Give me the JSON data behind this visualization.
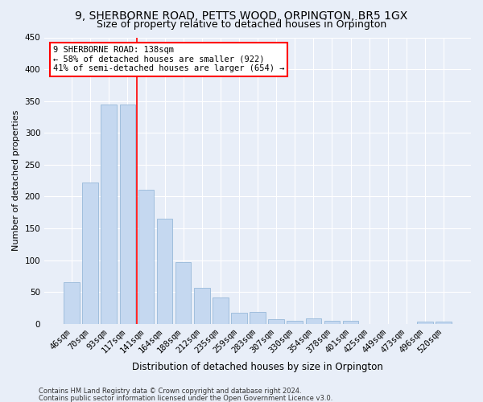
{
  "title1": "9, SHERBORNE ROAD, PETTS WOOD, ORPINGTON, BR5 1GX",
  "title2": "Size of property relative to detached houses in Orpington",
  "xlabel": "Distribution of detached houses by size in Orpington",
  "ylabel": "Number of detached properties",
  "bar_labels": [
    "46sqm",
    "70sqm",
    "93sqm",
    "117sqm",
    "141sqm",
    "164sqm",
    "188sqm",
    "212sqm",
    "235sqm",
    "259sqm",
    "283sqm",
    "307sqm",
    "330sqm",
    "354sqm",
    "378sqm",
    "401sqm",
    "425sqm",
    "449sqm",
    "473sqm",
    "496sqm",
    "520sqm"
  ],
  "bar_values": [
    65,
    222,
    345,
    345,
    210,
    165,
    97,
    57,
    41,
    17,
    18,
    7,
    5,
    8,
    5,
    5,
    0,
    0,
    0,
    3,
    4
  ],
  "bar_color": "#c5d8f0",
  "bar_edge_color": "#8ab0d4",
  "annotation_text_line1": "9 SHERBORNE ROAD: 138sqm",
  "annotation_text_line2": "← 58% of detached houses are smaller (922)",
  "annotation_text_line3": "41% of semi-detached houses are larger (654) →",
  "annotation_box_color": "white",
  "annotation_box_edge": "red",
  "vline_color": "red",
  "ylim": [
    0,
    450
  ],
  "yticks": [
    0,
    50,
    100,
    150,
    200,
    250,
    300,
    350,
    400,
    450
  ],
  "footer1": "Contains HM Land Registry data © Crown copyright and database right 2024.",
  "footer2": "Contains public sector information licensed under the Open Government Licence v3.0.",
  "bg_color": "#e8eef8",
  "plot_bg_color": "#e8eef8",
  "grid_color": "white",
  "title1_fontsize": 10,
  "title2_fontsize": 9,
  "xlabel_fontsize": 8.5,
  "ylabel_fontsize": 8,
  "tick_fontsize": 7.5,
  "annotation_fontsize": 7.5,
  "footer_fontsize": 6
}
